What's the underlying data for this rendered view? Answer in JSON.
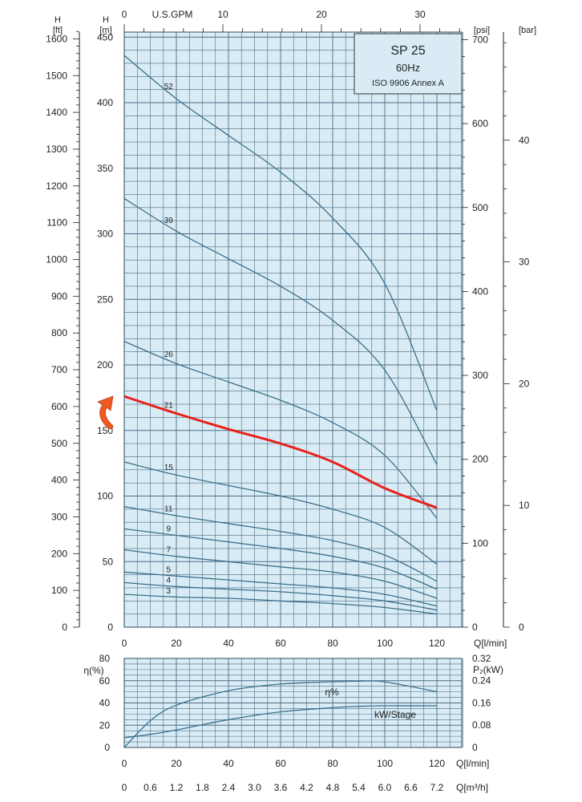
{
  "colors": {
    "plot_bg": "#d9ecf5",
    "grid": "#4a6c86",
    "curve": "#3b6f8a",
    "highlight": "#e8201c",
    "arrow": "#f05a22"
  },
  "title_box": {
    "model": "SP 25",
    "frequency": "60Hz",
    "standard": "ISO 9906 Annex A"
  },
  "axes": {
    "h_ft": {
      "label_top": "H",
      "label_unit": "[ft]",
      "ticks": [
        "0",
        "100",
        "200",
        "300",
        "400",
        "500",
        "600",
        "700",
        "800",
        "900",
        "1000",
        "1100",
        "1200",
        "1300",
        "1400",
        "1500",
        "1600"
      ]
    },
    "h_m": {
      "label_top": "H",
      "label_unit": "[m]",
      "ticks": [
        "0",
        "50",
        "100",
        "150",
        "200",
        "250",
        "300",
        "350",
        "400",
        "450"
      ]
    },
    "psi": {
      "label": "[psi]",
      "ticks": [
        "0",
        "100",
        "200",
        "300",
        "400",
        "500",
        "600",
        "700"
      ]
    },
    "bar": {
      "label": "[bar]",
      "ticks": [
        "0",
        "10",
        "20",
        "30",
        "40"
      ]
    },
    "gpm": {
      "label": "U.S.GPM",
      "ticks": [
        "0",
        "10",
        "20",
        "30"
      ]
    },
    "q_lmin": {
      "label": "Q[l/min]",
      "ticks": [
        "0",
        "20",
        "40",
        "60",
        "80",
        "100",
        "120"
      ]
    },
    "eta": {
      "label": "η(%)",
      "ticks": [
        "0",
        "20",
        "40",
        "60",
        "80"
      ]
    },
    "p2": {
      "label": "P₂(kW)",
      "ticks": [
        "0",
        "0.08",
        "0.16",
        "0.24",
        "0.32"
      ]
    },
    "q_m3h": {
      "label": "Q[m³/h]",
      "ticks": [
        "0",
        "0.6",
        "1.2",
        "1.8",
        "2.4",
        "3.0",
        "3.6",
        "4.2",
        "4.8",
        "5.4",
        "6.0",
        "6.6",
        "7.2"
      ]
    }
  },
  "chart_data": [
    {
      "type": "line",
      "x_unit": "l/min",
      "y_unit": "m",
      "xlim": [
        0,
        130
      ],
      "ylim": [
        0,
        455
      ],
      "x": [
        0,
        20,
        40,
        60,
        80,
        100,
        120
      ],
      "series": [
        {
          "name": "52",
          "highlight": false,
          "values": [
            436,
            403,
            375,
            347,
            312,
            262,
            165
          ]
        },
        {
          "name": "39",
          "highlight": false,
          "values": [
            327,
            302,
            281,
            260,
            234,
            196,
            124
          ]
        },
        {
          "name": "26",
          "highlight": false,
          "values": [
            218,
            201,
            187,
            173,
            156,
            131,
            83
          ]
        },
        {
          "name": "21",
          "highlight": true,
          "values": [
            176,
            163,
            151,
            140,
            126,
            106,
            91
          ]
        },
        {
          "name": "15",
          "highlight": false,
          "values": [
            126,
            116,
            108,
            100,
            90,
            76,
            48
          ]
        },
        {
          "name": "11",
          "highlight": false,
          "values": [
            92,
            85,
            79,
            73,
            66,
            55,
            35
          ]
        },
        {
          "name": "9",
          "highlight": false,
          "values": [
            75,
            70,
            65,
            60,
            54,
            45,
            29
          ]
        },
        {
          "name": "7",
          "highlight": false,
          "values": [
            59,
            54,
            50,
            46,
            42,
            35,
            22
          ]
        },
        {
          "name": "5",
          "highlight": false,
          "values": [
            42,
            39,
            36,
            33,
            30,
            25,
            16
          ]
        },
        {
          "name": "4",
          "highlight": false,
          "values": [
            34,
            31,
            29,
            27,
            24,
            20,
            13
          ]
        },
        {
          "name": "3",
          "highlight": false,
          "values": [
            25,
            23,
            22,
            20,
            18,
            15,
            10
          ]
        }
      ]
    },
    {
      "type": "line",
      "x_unit": "l/min",
      "xlim": [
        0,
        130
      ],
      "x": [
        0,
        10,
        20,
        40,
        60,
        80,
        90,
        100,
        120
      ],
      "series": [
        {
          "name": "η%",
          "axis": "eta_percent",
          "values": [
            0,
            24,
            38,
            51,
            57,
            59,
            59.5,
            59,
            50
          ]
        },
        {
          "name": "kW/Stage",
          "axis": "p2_kw",
          "values": [
            0.035,
            0.047,
            0.063,
            0.1,
            0.128,
            0.143,
            0.148,
            0.15,
            0.15
          ]
        }
      ]
    }
  ]
}
